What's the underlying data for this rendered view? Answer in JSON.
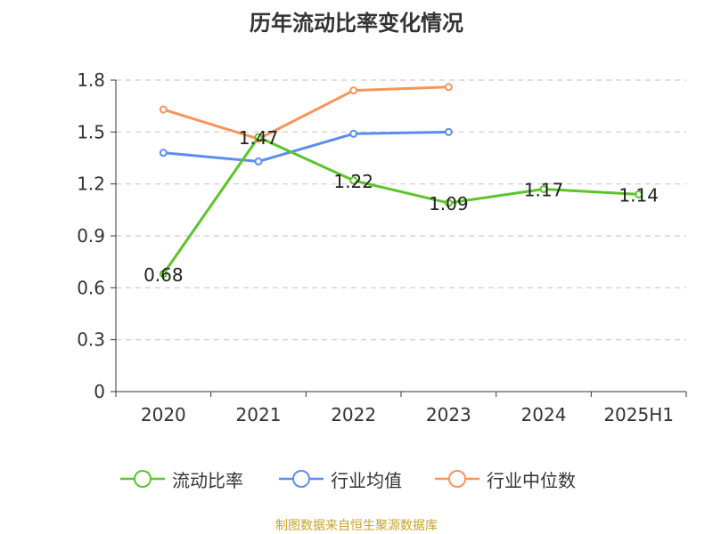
{
  "chart_data": {
    "type": "line",
    "title": "历年流动比率变化情况",
    "categories": [
      "2020",
      "2021",
      "2022",
      "2023",
      "2024",
      "2025H1"
    ],
    "ylim": [
      0,
      1.8
    ],
    "yticks": [
      "0",
      "0.3",
      "0.6",
      "0.9",
      "1.2",
      "1.5",
      "1.8"
    ],
    "grid": true,
    "legend_position": "bottom",
    "series": [
      {
        "name": "流动比率",
        "color": "#5cc42a",
        "values": [
          0.68,
          1.47,
          1.22,
          1.09,
          1.17,
          1.14
        ],
        "labels": [
          "0.68",
          "1.47",
          "1.22",
          "1.09",
          "1.17",
          "1.14"
        ]
      },
      {
        "name": "行业均值",
        "color": "#5b8def",
        "values": [
          1.38,
          1.33,
          1.49,
          1.5,
          null,
          null
        ]
      },
      {
        "name": "行业中位数",
        "color": "#f7945a",
        "values": [
          1.63,
          1.46,
          1.74,
          1.76,
          null,
          null
        ]
      }
    ]
  },
  "source_note": "制图数据来自恒生聚源数据库"
}
